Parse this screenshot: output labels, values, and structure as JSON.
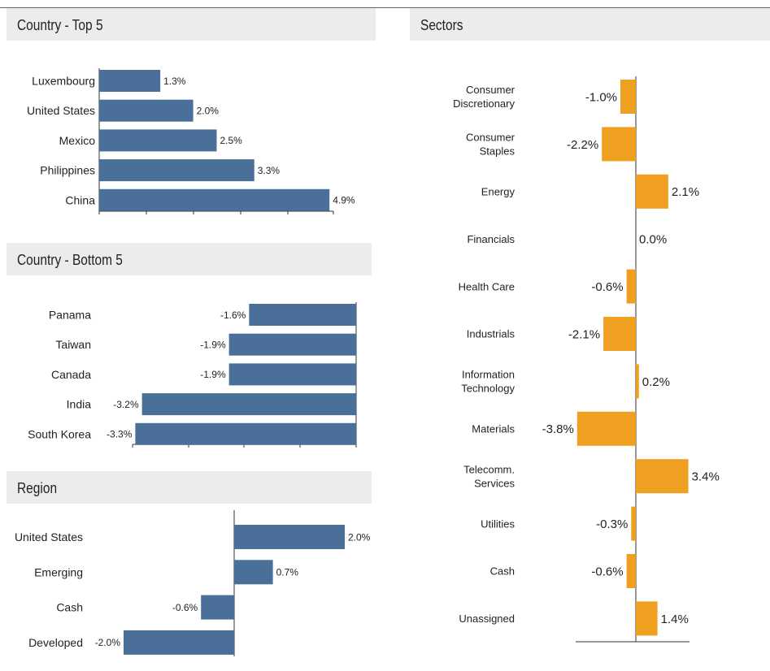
{
  "panels": {
    "top5_title": "Country - Top 5",
    "bottom5_title": "Country - Bottom 5",
    "region_title": "Region",
    "sectors_title": "Sectors"
  },
  "chart_data": [
    {
      "type": "bar",
      "orientation": "horizontal",
      "title": "Country - Top 5",
      "categories": [
        "Luxembourg",
        "United States",
        "Mexico",
        "Philippines",
        "China"
      ],
      "values": [
        1.3,
        2.0,
        2.5,
        3.3,
        4.9
      ],
      "labels": [
        "1.3%",
        "2.0%",
        "2.5%",
        "3.3%",
        "4.9%"
      ],
      "color": "#4a6f98"
    },
    {
      "type": "bar",
      "orientation": "horizontal",
      "title": "Country - Bottom 5",
      "categories": [
        "Panama",
        "Taiwan",
        "Canada",
        "India",
        "South Korea"
      ],
      "values": [
        -1.6,
        -1.9,
        -1.9,
        -3.2,
        -3.3
      ],
      "labels": [
        "-1.6%",
        "-1.9%",
        "-1.9%",
        "-3.2%",
        "-3.3%"
      ],
      "color": "#4a6f98"
    },
    {
      "type": "bar",
      "orientation": "horizontal",
      "title": "Region",
      "categories": [
        "United States",
        "Emerging",
        "Cash",
        "Developed"
      ],
      "values": [
        2.0,
        0.7,
        -0.6,
        -2.0
      ],
      "labels": [
        "2.0%",
        "0.7%",
        "-0.6%",
        "-2.0%"
      ],
      "color": "#4a6f98"
    },
    {
      "type": "bar",
      "orientation": "horizontal",
      "title": "Sectors",
      "categories": [
        [
          "Consumer",
          "Discretionary"
        ],
        [
          "Consumer",
          "Staples"
        ],
        [
          "Energy"
        ],
        [
          "Financials"
        ],
        [
          "Health Care"
        ],
        [
          "Industrials"
        ],
        [
          "Information",
          "Technology"
        ],
        [
          "Materials"
        ],
        [
          "Telecomm.",
          "Services"
        ],
        [
          "Utilities"
        ],
        [
          "Cash"
        ],
        [
          "Unassigned"
        ]
      ],
      "values": [
        -1.0,
        -2.2,
        2.1,
        0.0,
        -0.6,
        -2.1,
        0.2,
        -3.8,
        3.4,
        -0.3,
        -0.6,
        1.4
      ],
      "labels": [
        "-1.0%",
        "-2.2%",
        "2.1%",
        "0.0%",
        "-0.6%",
        "-2.1%",
        "0.2%",
        "-3.8%",
        "3.4%",
        "-0.3%",
        "-0.6%",
        "1.4%"
      ],
      "color": "#f0a020"
    }
  ]
}
